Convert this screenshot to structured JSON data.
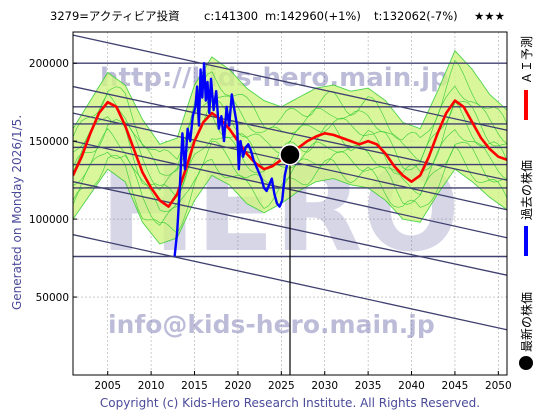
{
  "header": {
    "code_name": "3279=アクティビア投資",
    "current": "c:141300",
    "mid": "m:142960(+1%)",
    "target": "t:132062(-7%)",
    "stars": "★★★"
  },
  "side_left": "Generated on Monday 2026/1/5.",
  "legend": {
    "ai": "ＡＩ予測",
    "past": "過去の株価",
    "latest": "最新の株価"
  },
  "watermarks": {
    "url": "http://kids-hero.main.jp",
    "mark": "HERO",
    "email": "info@kids-hero.main.jp"
  },
  "footer": "Copyright (c) Kids-Hero Research Institute. All Rights Reserved.",
  "colors": {
    "ai_line": "#ff0000",
    "past_line": "#0000ff",
    "band": "#33cc33",
    "yellow_band": "#ffff99",
    "trend_line": "#404070",
    "grid": "#aaaaaa"
  },
  "chart_data": {
    "type": "line",
    "xlim": [
      2001.0,
      2051.0
    ],
    "ylim": [
      0,
      220000
    ],
    "x_ticks": [
      2005,
      2010,
      2015,
      2020,
      2025,
      2030,
      2035,
      2040,
      2045,
      2050
    ],
    "y_ticks": [
      50000,
      100000,
      150000,
      200000
    ],
    "hlines": [
      200000,
      172000,
      161000,
      146000,
      135000,
      120000,
      76000
    ],
    "trend_lines": [
      [
        [
          2001,
          218000
        ],
        [
          2051,
          157000
        ]
      ],
      [
        [
          2001,
          185000
        ],
        [
          2051,
          125000
        ]
      ],
      [
        [
          2001,
          168000
        ],
        [
          2051,
          106000
        ]
      ],
      [
        [
          2001,
          150000
        ],
        [
          2051,
          88000
        ]
      ],
      [
        [
          2001,
          124000
        ],
        [
          2051,
          64000
        ]
      ],
      [
        [
          2001,
          90000
        ],
        [
          2051,
          29000
        ]
      ]
    ],
    "current_point": {
      "x": 2026.0,
      "y": 141300
    },
    "vline_x": 2026.0,
    "ai_forecast": [
      [
        2001,
        128000
      ],
      [
        2002,
        140000
      ],
      [
        2003,
        155000
      ],
      [
        2004,
        168000
      ],
      [
        2005,
        175000
      ],
      [
        2006,
        172000
      ],
      [
        2007,
        160000
      ],
      [
        2008,
        145000
      ],
      [
        2009,
        130000
      ],
      [
        2010,
        120000
      ],
      [
        2011,
        112000
      ],
      [
        2012,
        108000
      ],
      [
        2013,
        116000
      ],
      [
        2014,
        132000
      ],
      [
        2015,
        150000
      ],
      [
        2016,
        162000
      ],
      [
        2017,
        168000
      ],
      [
        2018,
        164000
      ],
      [
        2019,
        158000
      ],
      [
        2020,
        150000
      ],
      [
        2021,
        142000
      ],
      [
        2022,
        136000
      ],
      [
        2023,
        132000
      ],
      [
        2024,
        134000
      ],
      [
        2025,
        138000
      ],
      [
        2026,
        142000
      ],
      [
        2027,
        146000
      ],
      [
        2028,
        150000
      ],
      [
        2029,
        153000
      ],
      [
        2030,
        155000
      ],
      [
        2031,
        154000
      ],
      [
        2032,
        152000
      ],
      [
        2033,
        150000
      ],
      [
        2034,
        148000
      ],
      [
        2035,
        150000
      ],
      [
        2036,
        148000
      ],
      [
        2037,
        142000
      ],
      [
        2038,
        134000
      ],
      [
        2039,
        128000
      ],
      [
        2040,
        124000
      ],
      [
        2041,
        128000
      ],
      [
        2042,
        140000
      ],
      [
        2043,
        155000
      ],
      [
        2044,
        168000
      ],
      [
        2045,
        176000
      ],
      [
        2046,
        172000
      ],
      [
        2047,
        162000
      ],
      [
        2048,
        152000
      ],
      [
        2049,
        145000
      ],
      [
        2050,
        140000
      ],
      [
        2051,
        138000
      ]
    ],
    "past_price": [
      [
        2012.7,
        76000
      ],
      [
        2013.0,
        92000
      ],
      [
        2013.3,
        120000
      ],
      [
        2013.6,
        155000
      ],
      [
        2013.9,
        132000
      ],
      [
        2014.2,
        158000
      ],
      [
        2014.5,
        150000
      ],
      [
        2014.8,
        166000
      ],
      [
        2015.1,
        172000
      ],
      [
        2015.3,
        185000
      ],
      [
        2015.5,
        160000
      ],
      [
        2015.7,
        196000
      ],
      [
        2015.9,
        178000
      ],
      [
        2016.1,
        200000
      ],
      [
        2016.3,
        176000
      ],
      [
        2016.5,
        188000
      ],
      [
        2016.7,
        168000
      ],
      [
        2016.9,
        190000
      ],
      [
        2017.2,
        170000
      ],
      [
        2017.5,
        182000
      ],
      [
        2017.8,
        158000
      ],
      [
        2018.1,
        166000
      ],
      [
        2018.4,
        150000
      ],
      [
        2018.7,
        172000
      ],
      [
        2019.0,
        160000
      ],
      [
        2019.3,
        180000
      ],
      [
        2019.6,
        170000
      ],
      [
        2019.9,
        160000
      ],
      [
        2020.1,
        132000
      ],
      [
        2020.3,
        150000
      ],
      [
        2020.6,
        140000
      ],
      [
        2020.9,
        146000
      ],
      [
        2021.2,
        148000
      ],
      [
        2021.5,
        144000
      ],
      [
        2021.8,
        138000
      ],
      [
        2022.1,
        134000
      ],
      [
        2022.4,
        130000
      ],
      [
        2022.7,
        126000
      ],
      [
        2023.0,
        120000
      ],
      [
        2023.3,
        118000
      ],
      [
        2023.6,
        122000
      ],
      [
        2023.9,
        126000
      ],
      [
        2024.2,
        116000
      ],
      [
        2024.5,
        110000
      ],
      [
        2024.8,
        108000
      ],
      [
        2025.1,
        112000
      ],
      [
        2025.4,
        128000
      ],
      [
        2025.7,
        136000
      ],
      [
        2026.0,
        141300
      ]
    ],
    "band_low": [
      [
        2001,
        100000
      ],
      [
        2003,
        116000
      ],
      [
        2005,
        132000
      ],
      [
        2007,
        124000
      ],
      [
        2009,
        98000
      ],
      [
        2011,
        84000
      ],
      [
        2013,
        88000
      ],
      [
        2015,
        112000
      ],
      [
        2017,
        128000
      ],
      [
        2019,
        122000
      ],
      [
        2021,
        110000
      ],
      [
        2023,
        104000
      ],
      [
        2025,
        110000
      ],
      [
        2027,
        118000
      ],
      [
        2029,
        124000
      ],
      [
        2031,
        126000
      ],
      [
        2033,
        122000
      ],
      [
        2035,
        120000
      ],
      [
        2037,
        112000
      ],
      [
        2039,
        100000
      ],
      [
        2041,
        98000
      ],
      [
        2043,
        116000
      ],
      [
        2045,
        132000
      ],
      [
        2047,
        124000
      ],
      [
        2049,
        114000
      ],
      [
        2051,
        106000
      ]
    ],
    "band_high": [
      [
        2001,
        158000
      ],
      [
        2003,
        176000
      ],
      [
        2005,
        194000
      ],
      [
        2007,
        186000
      ],
      [
        2009,
        164000
      ],
      [
        2011,
        148000
      ],
      [
        2013,
        152000
      ],
      [
        2015,
        186000
      ],
      [
        2017,
        204000
      ],
      [
        2019,
        196000
      ],
      [
        2021,
        184000
      ],
      [
        2023,
        176000
      ],
      [
        2025,
        172000
      ],
      [
        2027,
        178000
      ],
      [
        2029,
        184000
      ],
      [
        2031,
        186000
      ],
      [
        2033,
        182000
      ],
      [
        2035,
        184000
      ],
      [
        2037,
        176000
      ],
      [
        2039,
        162000
      ],
      [
        2041,
        158000
      ],
      [
        2043,
        182000
      ],
      [
        2045,
        208000
      ],
      [
        2047,
        196000
      ],
      [
        2049,
        180000
      ],
      [
        2051,
        170000
      ]
    ]
  }
}
